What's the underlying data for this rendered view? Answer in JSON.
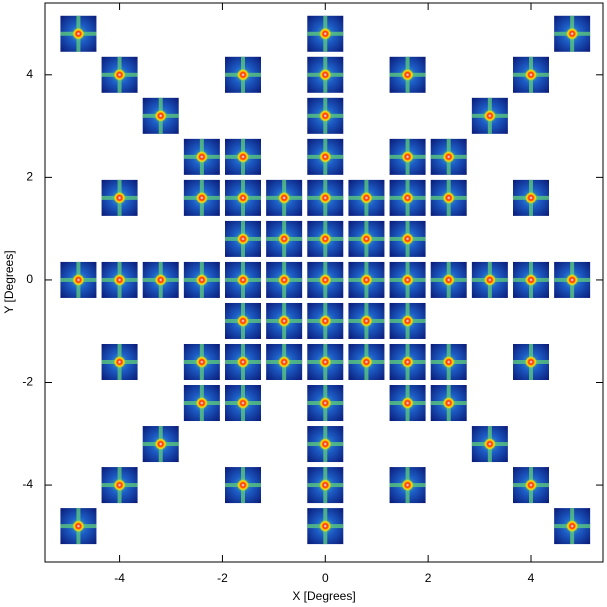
{
  "chart_data": {
    "type": "scatter",
    "x_label": "X [Degrees]",
    "y_label": "Y [Degrees]",
    "x": [
      -4.8,
      0,
      4.8,
      -4.0,
      -1.6,
      0,
      1.6,
      4.0,
      -3.2,
      0,
      3.2,
      -2.4,
      -1.6,
      0,
      1.6,
      2.4,
      -4.0,
      -2.4,
      -1.6,
      -0.8,
      0,
      0.8,
      1.6,
      2.4,
      4.0,
      -1.6,
      -0.8,
      0,
      0.8,
      1.6,
      -4.8,
      -4.0,
      -3.2,
      -2.4,
      -1.6,
      -0.8,
      0,
      0.8,
      1.6,
      2.4,
      3.2,
      4.0,
      4.8,
      -1.6,
      -0.8,
      0,
      0.8,
      1.6,
      -4.0,
      -2.4,
      -1.6,
      -0.8,
      0,
      0.8,
      1.6,
      2.4,
      4.0,
      -2.4,
      -1.6,
      0,
      1.6,
      2.4,
      -3.2,
      0,
      3.2,
      -4.0,
      -1.6,
      0,
      1.6,
      4.0,
      -4.8,
      0,
      4.8
    ],
    "y": [
      4.8,
      4.8,
      4.8,
      4.0,
      4.0,
      4.0,
      4.0,
      4.0,
      3.2,
      3.2,
      3.2,
      2.4,
      2.4,
      2.4,
      2.4,
      2.4,
      1.6,
      1.6,
      1.6,
      1.6,
      1.6,
      1.6,
      1.6,
      1.6,
      1.6,
      0.8,
      0.8,
      0.8,
      0.8,
      0.8,
      0,
      0,
      0,
      0,
      0,
      0,
      0,
      0,
      0,
      0,
      0,
      0,
      0,
      -0.8,
      -0.8,
      -0.8,
      -0.8,
      -0.8,
      -1.6,
      -1.6,
      -1.6,
      -1.6,
      -1.6,
      -1.6,
      -1.6,
      -1.6,
      -1.6,
      -2.4,
      -2.4,
      -2.4,
      -2.4,
      -2.4,
      -3.2,
      -3.2,
      -3.2,
      -4.0,
      -4.0,
      -4.0,
      -4.0,
      -4.0,
      -4.8,
      -4.8,
      -4.8
    ],
    "xlim": [
      -5.45,
      5.4
    ],
    "ylim": [
      -5.5,
      5.4
    ],
    "xticks": [
      -4,
      -2,
      0,
      2,
      4
    ],
    "yticks": [
      -4,
      -2,
      0,
      2,
      4
    ]
  }
}
